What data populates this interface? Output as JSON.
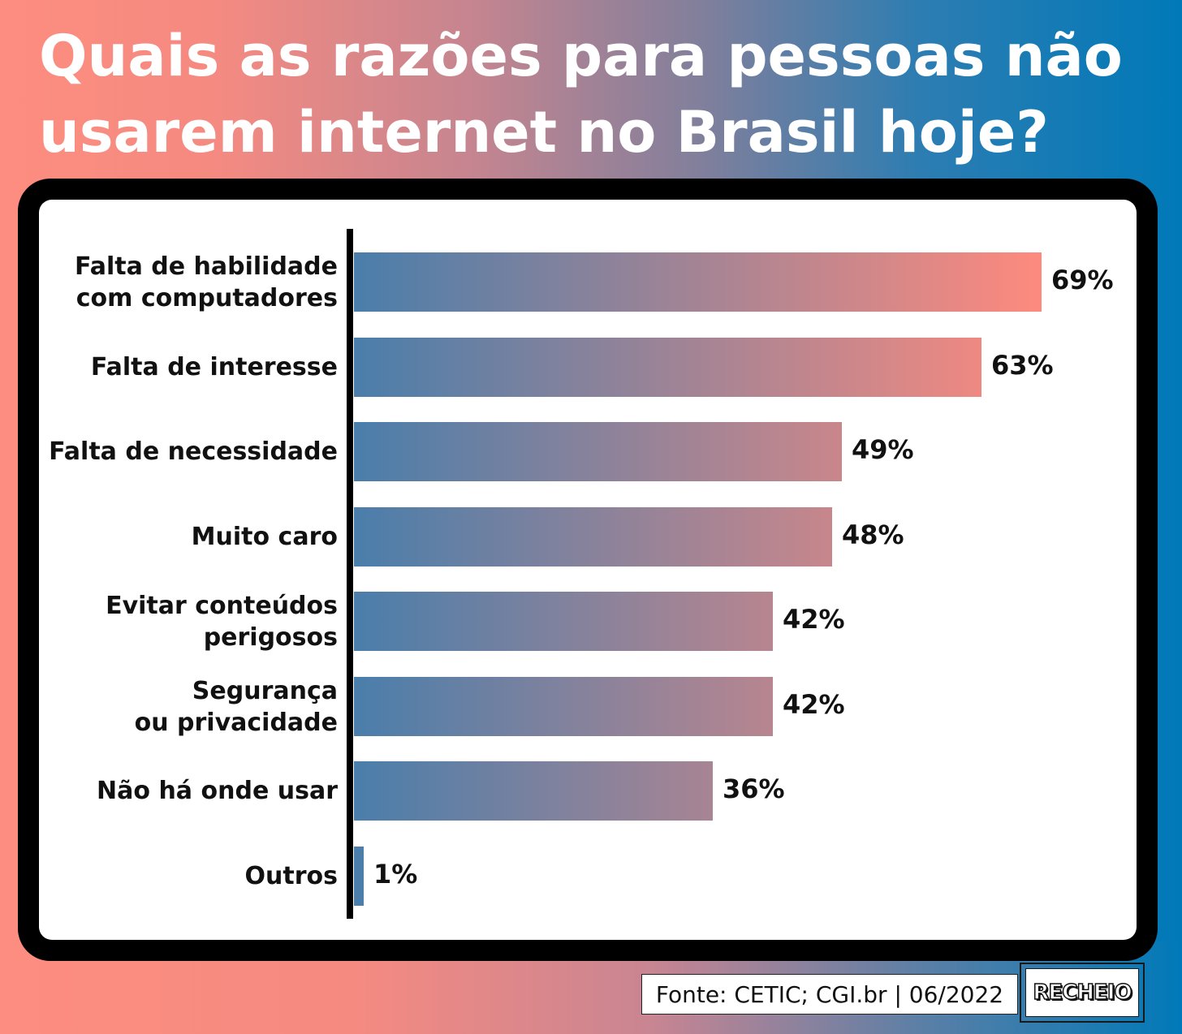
{
  "title": "Quais as razões para pessoas não usarem internet no Brasil hoje?",
  "chart_data": {
    "type": "bar",
    "orientation": "horizontal",
    "categories": [
      [
        "Falta de habilidade",
        "com computadores"
      ],
      [
        "Falta de interesse"
      ],
      [
        "Falta de necessidade"
      ],
      [
        "Muito caro"
      ],
      [
        "Evitar conteúdos",
        "perigosos"
      ],
      [
        "Segurança",
        "ou privacidade"
      ],
      [
        "Não há onde usar"
      ],
      [
        "Outros"
      ]
    ],
    "values": [
      69,
      63,
      49,
      48,
      42,
      42,
      36,
      1
    ],
    "value_labels": [
      "69%",
      "63%",
      "49%",
      "48%",
      "42%",
      "42%",
      "36%",
      "1%"
    ],
    "unit": "%",
    "xlim": [
      0,
      69
    ],
    "grid": false,
    "legend": "none",
    "bar_gradient": [
      "#4a7eab",
      "#fe8a7e"
    ]
  },
  "source": "Fonte: CETIC; CGI.br | 06/2022",
  "logo": "RECHEIO"
}
